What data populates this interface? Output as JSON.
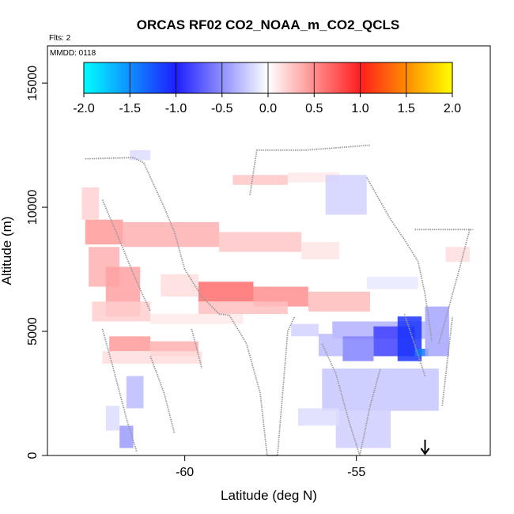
{
  "chart_data": {
    "type": "heatmap",
    "title": "ORCAS RF02 CO2_NOAA_m_CO2_QCLS",
    "note_flights": "Flts: 2",
    "note_date": "MMDD: 0118",
    "xlabel": "Latitude (deg N)",
    "ylabel": "Altitude (m)",
    "xlim": [
      -64,
      -51.1
    ],
    "ylim": [
      0,
      16500
    ],
    "x_ticks": [
      -60,
      -55
    ],
    "x_tick_labels": [
      "-60",
      "-55"
    ],
    "y_ticks": [
      0,
      5000,
      10000,
      15000
    ],
    "y_tick_labels": [
      "0",
      "5000",
      "10000",
      "15000"
    ],
    "grid": false,
    "colorbar": {
      "orientation": "horizontal",
      "placement": "top-inside",
      "range": [
        -2.0,
        2.0
      ],
      "ticks": [
        -2.0,
        -1.5,
        -1.0,
        -0.5,
        0.0,
        0.5,
        1.0,
        1.5,
        2.0
      ],
      "tick_labels": [
        "-2.0",
        "-1.5",
        "-1.0",
        "-0.5",
        "0.0",
        "0.5",
        "1.0",
        "1.5",
        "2.0"
      ],
      "color_stops": [
        {
          "value": -2.0,
          "color": "#00ffff"
        },
        {
          "value": -1.0,
          "color": "#1e1eff"
        },
        {
          "value": 0.0,
          "color": "#ffffff"
        },
        {
          "value": 1.0,
          "color": "#ff1e1e"
        },
        {
          "value": 1.5,
          "color": "#ff8c00"
        },
        {
          "value": 2.0,
          "color": "#ffff00"
        }
      ]
    },
    "cells": [
      {
        "lat": [
          -62.9,
          -61.8
        ],
        "alt": [
          8500,
          9500
        ],
        "value": 0.45
      },
      {
        "lat": [
          -61.8,
          -59.0
        ],
        "alt": [
          8400,
          9400
        ],
        "value": 0.35
      },
      {
        "lat": [
          -59.0,
          -56.6
        ],
        "alt": [
          8200,
          9000
        ],
        "value": 0.25
      },
      {
        "lat": [
          -56.6,
          -55.5
        ],
        "alt": [
          7900,
          8600
        ],
        "value": 0.12
      },
      {
        "lat": [
          -62.8,
          -61.9
        ],
        "alt": [
          6800,
          8400
        ],
        "value": 0.35
      },
      {
        "lat": [
          -62.3,
          -61.3
        ],
        "alt": [
          5600,
          7600
        ],
        "value": 0.42
      },
      {
        "lat": [
          -62.7,
          -61.0
        ],
        "alt": [
          5400,
          6200
        ],
        "value": 0.22
      },
      {
        "lat": [
          -63.0,
          -62.5
        ],
        "alt": [
          9500,
          10800
        ],
        "value": 0.2
      },
      {
        "lat": [
          -60.7,
          -59.6
        ],
        "alt": [
          6400,
          7300
        ],
        "value": 0.15
      },
      {
        "lat": [
          -59.6,
          -58.0
        ],
        "alt": [
          6200,
          7000
        ],
        "value": 0.65
      },
      {
        "lat": [
          -58.0,
          -56.4
        ],
        "alt": [
          6000,
          6800
        ],
        "value": 0.5
      },
      {
        "lat": [
          -56.4,
          -54.6
        ],
        "alt": [
          5800,
          6600
        ],
        "value": 0.3
      },
      {
        "lat": [
          -59.6,
          -57.0
        ],
        "alt": [
          5700,
          6200
        ],
        "value": 0.28
      },
      {
        "lat": [
          -62.2,
          -61.0
        ],
        "alt": [
          4200,
          4800
        ],
        "value": 0.45
      },
      {
        "lat": [
          -61.0,
          -59.6
        ],
        "alt": [
          4000,
          4600
        ],
        "value": 0.35
      },
      {
        "lat": [
          -62.4,
          -59.5
        ],
        "alt": [
          3700,
          4200
        ],
        "value": 0.15
      },
      {
        "lat": [
          -61.0,
          -58.3
        ],
        "alt": [
          5300,
          5700
        ],
        "value": 0.1
      },
      {
        "lat": [
          -58.6,
          -57.0
        ],
        "alt": [
          10900,
          11300
        ],
        "value": 0.25
      },
      {
        "lat": [
          -57.0,
          -55.5
        ],
        "alt": [
          11000,
          11400
        ],
        "value": 0.1
      },
      {
        "lat": [
          -52.4,
          -51.7
        ],
        "alt": [
          7800,
          8400
        ],
        "value": 0.15
      },
      {
        "lat": [
          -55.7,
          -53.0
        ],
        "alt": [
          4700,
          5400
        ],
        "value": -0.35
      },
      {
        "lat": [
          -54.5,
          -53.3
        ],
        "alt": [
          4000,
          5200
        ],
        "value": -0.85
      },
      {
        "lat": [
          -53.8,
          -53.1
        ],
        "alt": [
          3800,
          5600
        ],
        "value": -1.1
      },
      {
        "lat": [
          -53.3,
          -52.9
        ],
        "alt": [
          4000,
          4300
        ],
        "value": -1.4
      },
      {
        "lat": [
          -55.4,
          -54.5
        ],
        "alt": [
          3800,
          4800
        ],
        "value": -0.55
      },
      {
        "lat": [
          -56.1,
          -55.4
        ],
        "alt": [
          4000,
          4900
        ],
        "value": -0.3
      },
      {
        "lat": [
          -56.9,
          -56.1
        ],
        "alt": [
          4800,
          5300
        ],
        "value": -0.2
      },
      {
        "lat": [
          -53.0,
          -52.3
        ],
        "alt": [
          4000,
          6000
        ],
        "value": -0.4
      },
      {
        "lat": [
          -56.0,
          -52.6
        ],
        "alt": [
          1800,
          3500
        ],
        "value": -0.25
      },
      {
        "lat": [
          -55.6,
          -54.0
        ],
        "alt": [
          300,
          1800
        ],
        "value": -0.22
      },
      {
        "lat": [
          -56.7,
          -55.5
        ],
        "alt": [
          1200,
          1900
        ],
        "value": -0.15
      },
      {
        "lat": [
          -55.9,
          -54.7
        ],
        "alt": [
          9700,
          11300
        ],
        "value": -0.2
      },
      {
        "lat": [
          -54.7,
          -53.2
        ],
        "alt": [
          6700,
          7200
        ],
        "value": -0.1
      },
      {
        "lat": [
          -61.7,
          -61.2
        ],
        "alt": [
          1900,
          3200
        ],
        "value": -0.3
      },
      {
        "lat": [
          -61.9,
          -61.5
        ],
        "alt": [
          300,
          1200
        ],
        "value": -0.45
      },
      {
        "lat": [
          -62.3,
          -61.9
        ],
        "alt": [
          1000,
          2000
        ],
        "value": -0.15
      },
      {
        "lat": [
          -61.6,
          -61.0
        ],
        "alt": [
          11900,
          12300
        ],
        "value": -0.15
      }
    ],
    "flight_track": [
      [
        [
          -62.9,
          11950
        ],
        [
          -61.5,
          12000
        ],
        [
          -61.2,
          11800
        ],
        [
          -60.6,
          10000
        ],
        [
          -60.3,
          9000
        ],
        [
          -60.0,
          7500
        ],
        [
          -59.5,
          6400
        ],
        [
          -59.0,
          5700
        ],
        [
          -58.7,
          5650
        ]
      ],
      [
        [
          -62.4,
          10300
        ],
        [
          -62.0,
          9000
        ],
        [
          -61.7,
          8000
        ],
        [
          -61.4,
          7000
        ],
        [
          -61.0,
          5800
        ]
      ],
      [
        [
          -62.4,
          5100
        ],
        [
          -62.1,
          3600
        ],
        [
          -61.7,
          1500
        ],
        [
          -61.4,
          150
        ]
      ],
      [
        [
          -61.0,
          4000
        ],
        [
          -60.6,
          2500
        ],
        [
          -60.3,
          900
        ]
      ],
      [
        [
          -59.8,
          5100
        ],
        [
          -59.5,
          3500
        ]
      ],
      [
        [
          -58.7,
          5650
        ],
        [
          -58.2,
          4500
        ],
        [
          -57.8,
          2500
        ],
        [
          -57.6,
          0
        ]
      ],
      [
        [
          -57.6,
          0
        ],
        [
          -57.3,
          0
        ],
        [
          -57.0,
          5000
        ],
        [
          -56.8,
          5600
        ]
      ],
      [
        [
          -58.1,
          10500
        ],
        [
          -57.9,
          12300
        ],
        [
          -56.5,
          12300
        ],
        [
          -54.6,
          12500
        ]
      ],
      [
        [
          -56.0,
          4500
        ],
        [
          -55.6,
          3300
        ],
        [
          -55.2,
          1300
        ],
        [
          -54.9,
          0
        ]
      ],
      [
        [
          -54.7,
          11200
        ],
        [
          -54.0,
          9500
        ],
        [
          -53.6,
          8700
        ],
        [
          -53.2,
          7800
        ],
        [
          -53.0,
          6500
        ],
        [
          -52.8,
          4600
        ]
      ],
      [
        [
          -54.9,
          0
        ],
        [
          -54.6,
          2000
        ],
        [
          -54.3,
          3500
        ]
      ],
      [
        [
          -53.6,
          5700
        ],
        [
          -53.0,
          3200
        ]
      ],
      [
        [
          -52.5,
          2000
        ],
        [
          -52.2,
          5600
        ]
      ],
      [
        [
          -53.3,
          9100
        ],
        [
          -51.6,
          9100
        ]
      ],
      [
        [
          -51.7,
          9100
        ],
        [
          -52.0,
          7500
        ],
        [
          -52.6,
          4500
        ]
      ]
    ],
    "arrow_marker": {
      "lat": -53.0,
      "direction": "down"
    }
  }
}
